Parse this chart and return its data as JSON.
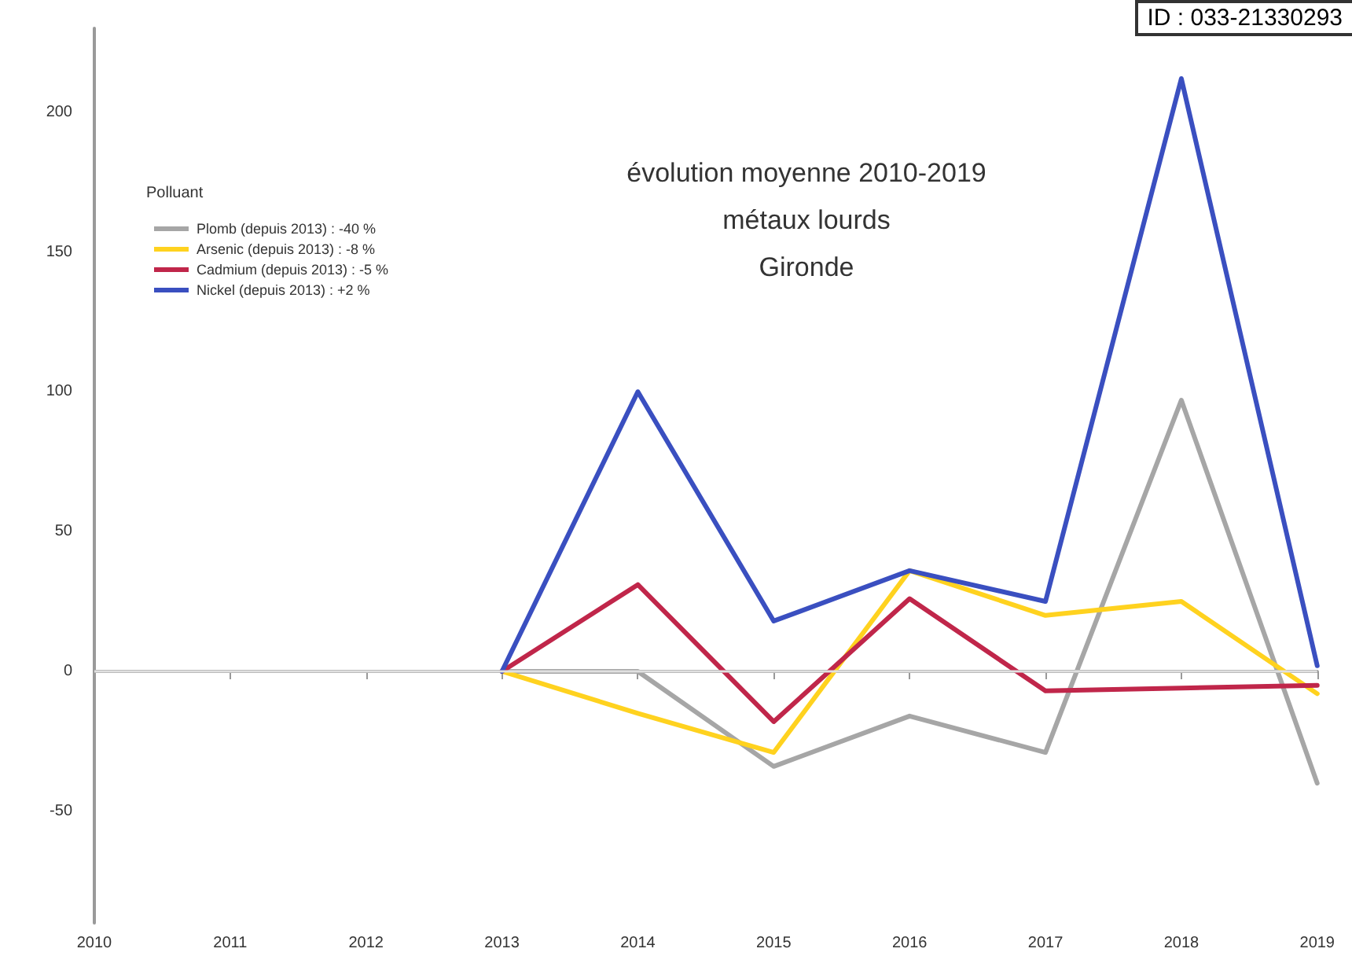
{
  "chart_data": {
    "type": "line",
    "title": "évolution moyenne 2010-2019\nmétaux lourds\nGironde",
    "legend_title": "Polluant",
    "annotations": [
      "ID : 033-21330293"
    ],
    "categories": [
      "2010",
      "2011",
      "2012",
      "2013",
      "2014",
      "2015",
      "2016",
      "2017",
      "2018",
      "2019"
    ],
    "series": [
      {
        "name": "Plomb (depuis 2013) : -40 %",
        "color": "#a6a6a6",
        "values": [
          null,
          null,
          null,
          0,
          0,
          -34,
          -16,
          -29,
          97,
          -40
        ]
      },
      {
        "name": "Arsenic (depuis 2013) : -8 %",
        "color": "#ffd21f",
        "values": [
          null,
          null,
          null,
          0,
          -15,
          -29,
          36,
          20,
          25,
          -8
        ]
      },
      {
        "name": "Cadmium (depuis 2013) : -5 %",
        "color": "#c0264a",
        "values": [
          null,
          null,
          null,
          0,
          31,
          -18,
          26,
          -7,
          -6,
          -5
        ]
      },
      {
        "name": "Nickel (depuis 2013) : +2 %",
        "color": "#3a4fc0",
        "values": [
          null,
          null,
          null,
          0,
          100,
          18,
          36,
          25,
          212,
          2
        ]
      }
    ],
    "ylim": [
      -90,
      230
    ],
    "yticks": [
      -50,
      0,
      50,
      100,
      150,
      200
    ],
    "ref_lines": [
      {
        "axis": "y",
        "value": 0,
        "color": "#e0e0e0"
      }
    ],
    "grid": false,
    "legend": "top left",
    "marker": "none",
    "line_style": "solid"
  }
}
